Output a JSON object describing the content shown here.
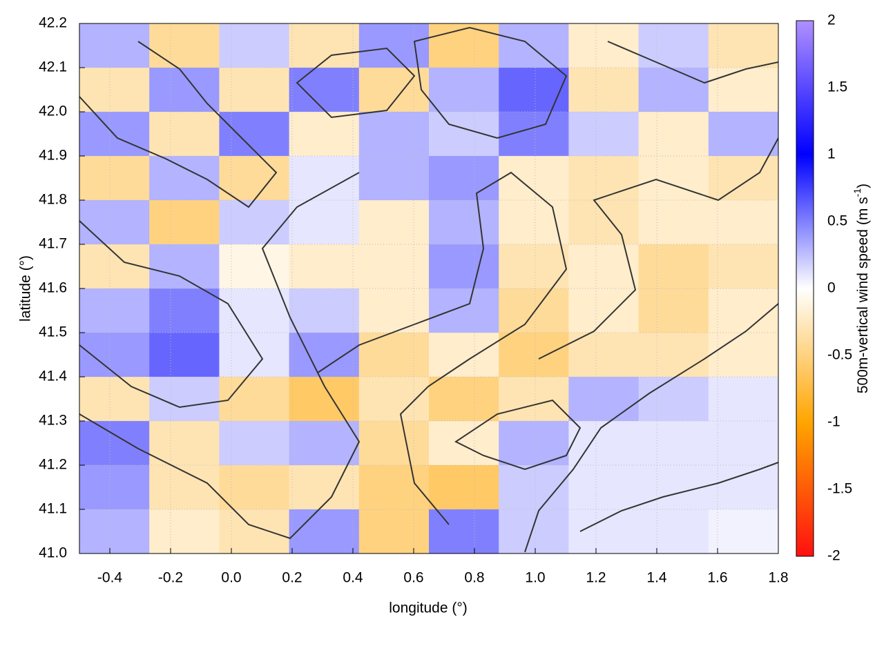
{
  "chart_data": {
    "type": "heatmap",
    "xlabel": "longitude (°)",
    "ylabel": "latitude (°)",
    "colorbar_label": "500m-vertical wind speed (m s",
    "colorbar_label_sup": "-1",
    "colorbar_label_end": ")",
    "xlim": [
      -0.5,
      1.8
    ],
    "ylim": [
      41.0,
      42.2
    ],
    "xticks": [
      -0.4,
      -0.2,
      {
        "value": 0,
        "label": "0.0"
      },
      0.2,
      0.4,
      0.6,
      0.8,
      {
        "value": 1,
        "label": "1.0"
      },
      1.2,
      1.4,
      1.6,
      1.8
    ],
    "yticks": [
      {
        "value": 41,
        "label": "41.0"
      },
      41.1,
      41.2,
      41.3,
      41.4,
      41.5,
      41.6,
      41.7,
      41.8,
      41.9,
      {
        "value": 42,
        "label": "42.0"
      },
      42.1,
      42.2
    ],
    "grid": true,
    "clim": [
      -2,
      2
    ],
    "cticks": [
      -2,
      -1.5,
      -1,
      -0.5,
      0,
      0.5,
      1,
      1.5,
      2
    ],
    "colorscale": [
      [
        -2,
        "#ff1010"
      ],
      [
        -1,
        "#ffa500"
      ],
      [
        0,
        "#ffffff"
      ],
      [
        1,
        "#0000ff"
      ],
      [
        2,
        "#b090ff"
      ]
    ],
    "x": [
      -0.385,
      -0.155,
      0.075,
      0.305,
      0.535,
      0.765,
      0.995,
      1.225,
      1.455,
      1.685
    ],
    "y": [
      42.15,
      42.05,
      41.95,
      41.85,
      41.75,
      41.65,
      41.55,
      41.45,
      41.35,
      41.25,
      41.15,
      41.05
    ],
    "z": [
      [
        0.3,
        -0.4,
        0.2,
        -0.3,
        0.4,
        -0.5,
        0.3,
        -0.2,
        0.2,
        -0.3
      ],
      [
        -0.3,
        0.4,
        -0.3,
        0.5,
        -0.4,
        0.3,
        0.6,
        -0.3,
        0.3,
        -0.2
      ],
      [
        0.4,
        -0.3,
        0.5,
        -0.2,
        0.3,
        0.2,
        0.5,
        0.2,
        -0.2,
        0.3
      ],
      [
        -0.4,
        0.3,
        -0.4,
        0.1,
        0.3,
        0.4,
        -0.2,
        -0.3,
        -0.2,
        -0.3
      ],
      [
        0.3,
        -0.5,
        0.2,
        0.1,
        -0.2,
        0.3,
        -0.2,
        -0.3,
        -0.2,
        -0.2
      ],
      [
        -0.3,
        0.3,
        -0.1,
        -0.2,
        -0.2,
        0.4,
        -0.3,
        -0.2,
        -0.4,
        -0.3
      ],
      [
        0.3,
        0.5,
        0.1,
        0.2,
        -0.2,
        0.3,
        -0.4,
        -0.2,
        -0.4,
        -0.2
      ],
      [
        0.4,
        0.6,
        0.1,
        0.4,
        -0.4,
        -0.2,
        -0.5,
        -0.3,
        -0.3,
        -0.2
      ],
      [
        -0.3,
        0.2,
        -0.4,
        -0.6,
        -0.3,
        -0.5,
        -0.3,
        0.3,
        0.2,
        0.1
      ],
      [
        0.5,
        -0.3,
        0.2,
        0.3,
        -0.4,
        -0.2,
        0.3,
        0.1,
        0.1,
        0.1
      ],
      [
        0.4,
        -0.3,
        -0.4,
        -0.3,
        -0.5,
        -0.6,
        0.2,
        0.1,
        0.1,
        0.1
      ],
      [
        0.3,
        -0.2,
        -0.3,
        0.4,
        -0.5,
        0.5,
        0.2,
        0.1,
        0.1,
        0.05
      ]
    ]
  }
}
